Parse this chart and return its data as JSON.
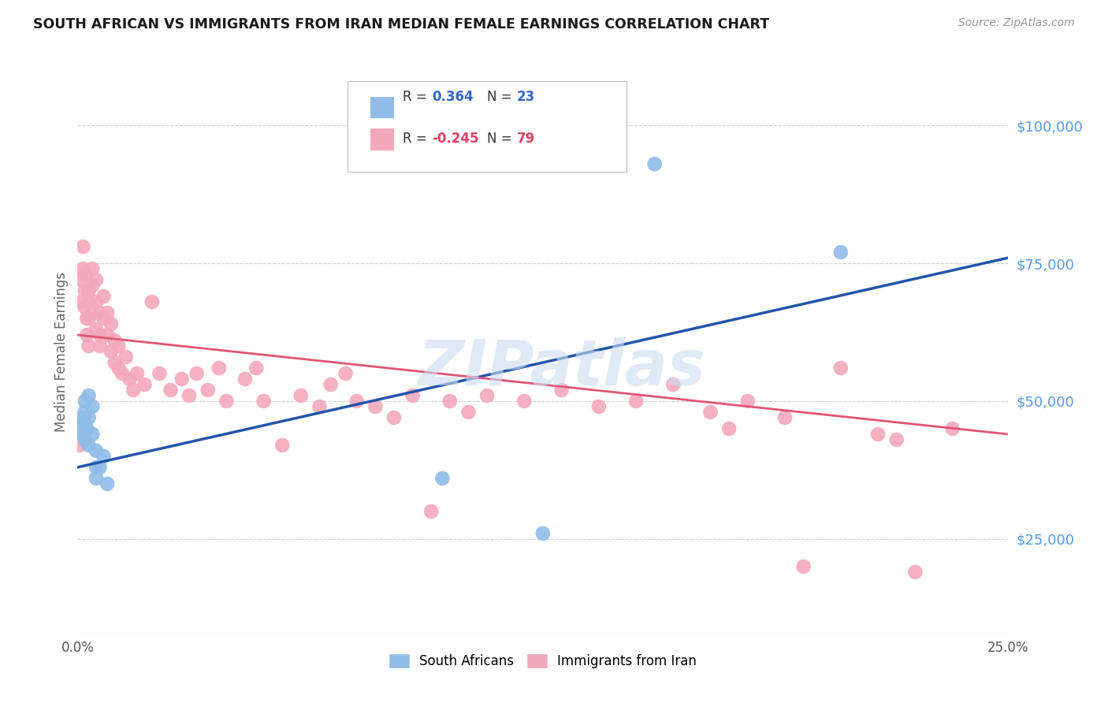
{
  "title": "SOUTH AFRICAN VS IMMIGRANTS FROM IRAN MEDIAN FEMALE EARNINGS CORRELATION CHART",
  "source": "Source: ZipAtlas.com",
  "ylabel": "Median Female Earnings",
  "right_ytick_labels": [
    "$25,000",
    "$50,000",
    "$75,000",
    "$100,000"
  ],
  "right_ytick_values": [
    25000,
    50000,
    75000,
    100000
  ],
  "background_color": "#ffffff",
  "grid_color": "#d0d0d0",
  "watermark_text": "ZIPatlas",
  "watermark_color": "#ccddf0",
  "blue_label": "South Africans",
  "pink_label": "Immigrants from Iran",
  "blue_color": "#90bce8",
  "pink_color": "#f4a8bc",
  "blue_line_color": "#2255aa",
  "pink_line_color": "#e05575",
  "legend_R_blue": "0.364",
  "legend_N_blue": "23",
  "legend_R_pink": "-0.245",
  "legend_N_pink": "79",
  "blue_x": [
    0.0005,
    0.001,
    0.001,
    0.0015,
    0.002,
    0.002,
    0.002,
    0.0025,
    0.003,
    0.003,
    0.003,
    0.004,
    0.004,
    0.005,
    0.005,
    0.005,
    0.006,
    0.007,
    0.008,
    0.098,
    0.125,
    0.155,
    0.205
  ],
  "blue_y": [
    45000,
    47000,
    44000,
    46000,
    43000,
    48000,
    50000,
    45000,
    42000,
    47000,
    51000,
    44000,
    49000,
    41000,
    38000,
    36000,
    38000,
    40000,
    35000,
    36000,
    26000,
    93000,
    77000
  ],
  "pink_x": [
    0.0005,
    0.001,
    0.001,
    0.0015,
    0.0015,
    0.002,
    0.002,
    0.002,
    0.0025,
    0.0025,
    0.003,
    0.003,
    0.003,
    0.003,
    0.004,
    0.004,
    0.004,
    0.005,
    0.005,
    0.005,
    0.006,
    0.006,
    0.006,
    0.007,
    0.007,
    0.008,
    0.008,
    0.009,
    0.009,
    0.01,
    0.01,
    0.011,
    0.011,
    0.012,
    0.013,
    0.014,
    0.015,
    0.016,
    0.018,
    0.02,
    0.022,
    0.025,
    0.028,
    0.03,
    0.032,
    0.035,
    0.038,
    0.04,
    0.045,
    0.048,
    0.05,
    0.055,
    0.06,
    0.065,
    0.068,
    0.072,
    0.075,
    0.08,
    0.085,
    0.09,
    0.095,
    0.1,
    0.105,
    0.11,
    0.12,
    0.13,
    0.14,
    0.15,
    0.16,
    0.17,
    0.175,
    0.18,
    0.19,
    0.195,
    0.205,
    0.215,
    0.22,
    0.225,
    0.235
  ],
  "pink_y": [
    42000,
    72000,
    68000,
    78000,
    74000,
    70000,
    67000,
    73000,
    65000,
    62000,
    70000,
    65000,
    68000,
    60000,
    66000,
    71000,
    74000,
    63000,
    68000,
    72000,
    62000,
    66000,
    60000,
    65000,
    69000,
    62000,
    66000,
    59000,
    64000,
    57000,
    61000,
    56000,
    60000,
    55000,
    58000,
    54000,
    52000,
    55000,
    53000,
    68000,
    55000,
    52000,
    54000,
    51000,
    55000,
    52000,
    56000,
    50000,
    54000,
    56000,
    50000,
    42000,
    51000,
    49000,
    53000,
    55000,
    50000,
    49000,
    47000,
    51000,
    30000,
    50000,
    48000,
    51000,
    50000,
    52000,
    49000,
    50000,
    53000,
    48000,
    45000,
    50000,
    47000,
    20000,
    56000,
    44000,
    43000,
    19000,
    45000
  ],
  "xlim": [
    0.0,
    0.25
  ],
  "ylim": [
    8000,
    110000
  ],
  "blue_trendline_x": [
    0.0,
    0.25
  ],
  "blue_trendline_y": [
    38000,
    76000
  ],
  "pink_trendline_x": [
    0.0,
    0.25
  ],
  "pink_trendline_y": [
    62000,
    44000
  ],
  "xtick_positions": [
    0.0,
    0.05,
    0.1,
    0.15,
    0.2,
    0.25
  ],
  "xtick_labels": [
    "0.0%",
    "",
    "",
    "",
    "",
    "25.0%"
  ]
}
